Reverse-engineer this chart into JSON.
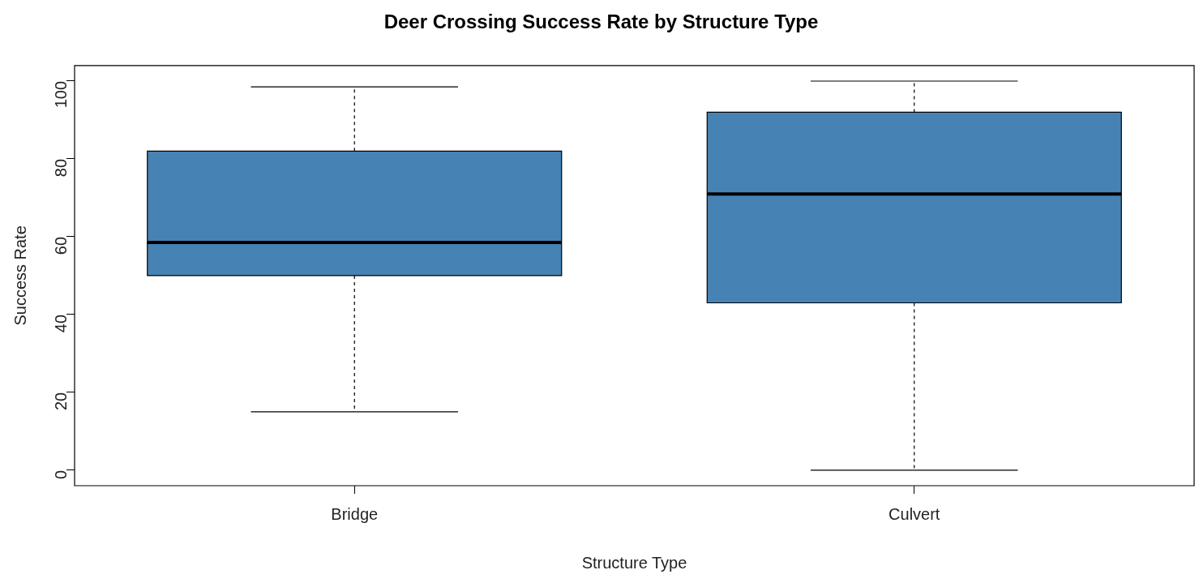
{
  "chart_data": {
    "type": "box",
    "title": "Deer Crossing Success Rate by Structure Type",
    "xlabel": "Structure Type",
    "ylabel": "Success Rate",
    "categories": [
      "Bridge",
      "Culvert"
    ],
    "boxes": [
      {
        "low": 15,
        "q1": 50,
        "median": 58.5,
        "q3": 82,
        "high": 98.5
      },
      {
        "low": 0,
        "q1": 43,
        "median": 71,
        "q3": 92,
        "high": 100
      }
    ],
    "color": "#4682b4",
    "ylim": [
      -4,
      104
    ],
    "yticks": [
      0,
      20,
      40,
      60,
      80,
      100
    ],
    "grid": false,
    "legend": false
  }
}
